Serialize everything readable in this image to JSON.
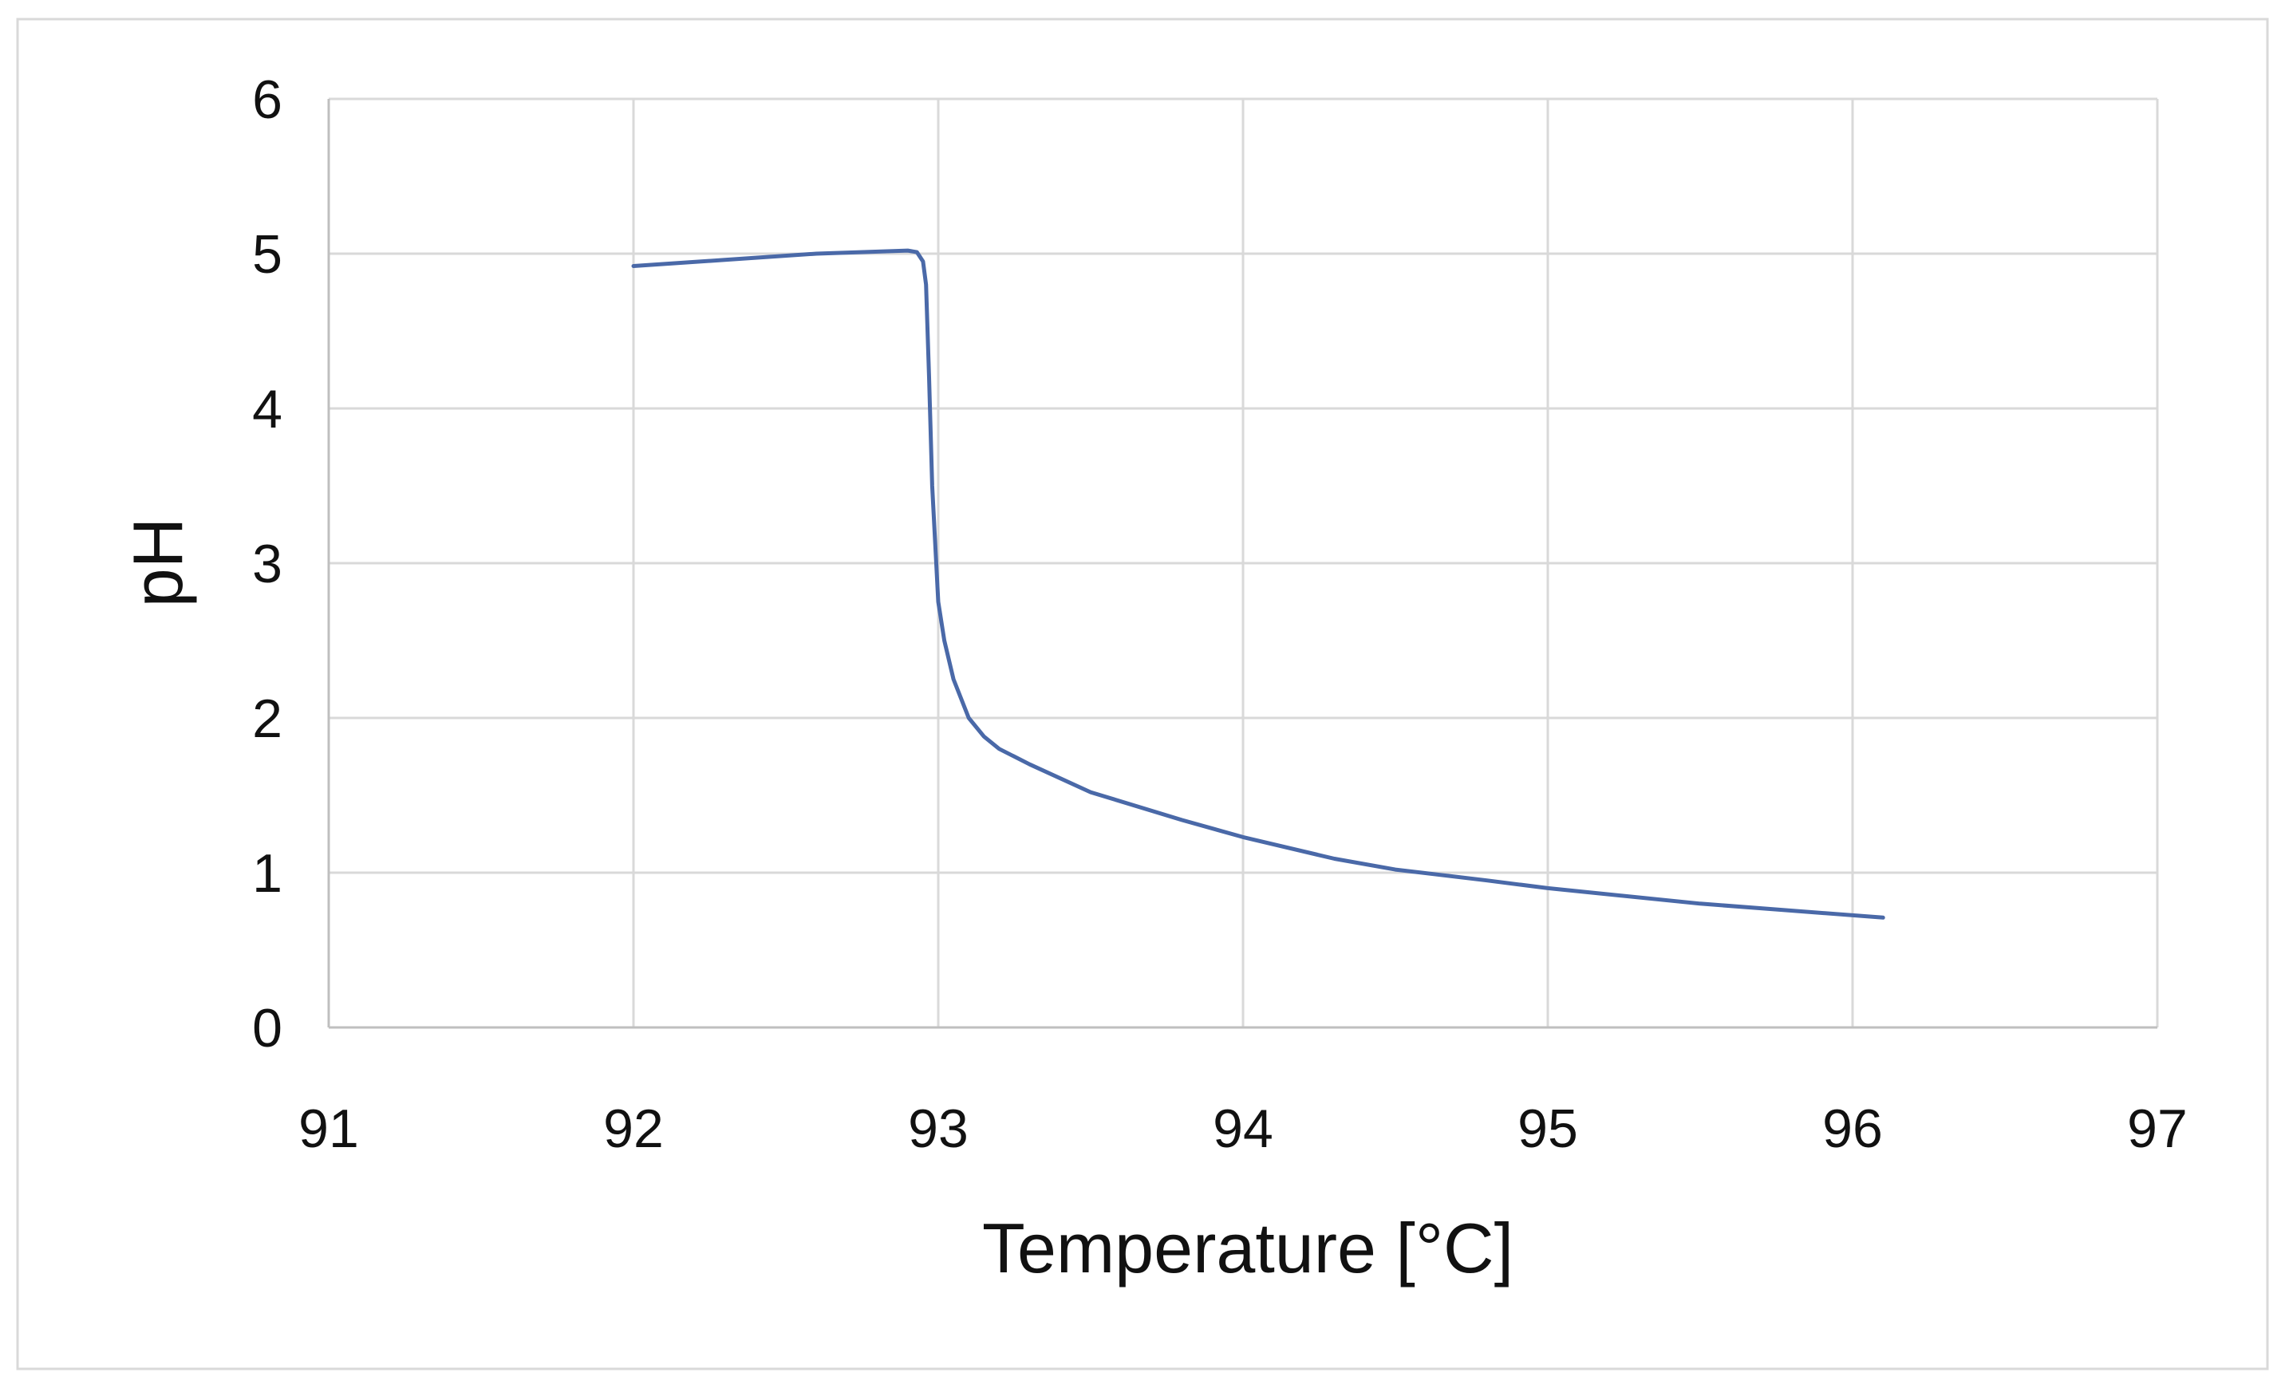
{
  "chart_data": {
    "type": "line",
    "title": "",
    "xlabel": "Temperature [°C]",
    "ylabel": "pH",
    "xlim": [
      91,
      97
    ],
    "ylim": [
      0,
      6
    ],
    "xticks": [
      91,
      92,
      93,
      94,
      95,
      96,
      97
    ],
    "yticks": [
      0,
      1,
      2,
      3,
      4,
      5,
      6
    ],
    "grid": true,
    "legend": "none",
    "series": [
      {
        "name": "pH",
        "color": "#4a69a8",
        "x": [
          92.0,
          92.3,
          92.6,
          92.9,
          92.93,
          92.95,
          92.96,
          92.97,
          92.98,
          93.0,
          93.02,
          93.05,
          93.1,
          93.15,
          93.2,
          93.3,
          93.5,
          93.8,
          94.0,
          94.3,
          94.5,
          94.8,
          95.0,
          95.5,
          96.1
        ],
        "y": [
          4.92,
          4.96,
          5.0,
          5.02,
          5.01,
          4.95,
          4.8,
          4.2,
          3.5,
          2.75,
          2.5,
          2.25,
          2.0,
          1.88,
          1.8,
          1.7,
          1.52,
          1.34,
          1.23,
          1.09,
          1.02,
          0.95,
          0.9,
          0.8,
          0.71
        ]
      }
    ]
  }
}
